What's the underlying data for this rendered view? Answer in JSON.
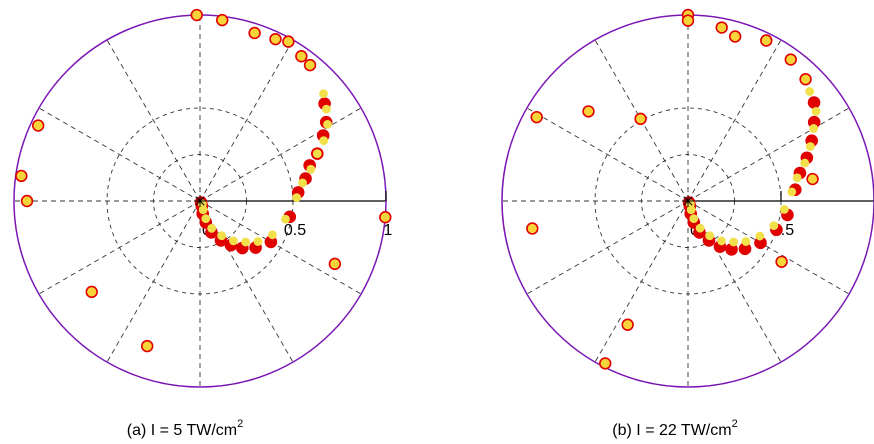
{
  "chart_data": [
    {
      "type": "scatter",
      "projection": "polar",
      "caption": {
        "prefix": "(a) I = 5 TW/cm",
        "sup": "2"
      },
      "radial_ticks": [
        "0",
        "0.5",
        "1"
      ],
      "rlim": [
        0,
        1
      ],
      "grid": true,
      "series": [
        {
          "marker": "filled-red-circle",
          "color": "#e00000",
          "points": [
            [
              0.01,
              -55
            ],
            [
              0.03,
              -70
            ],
            [
              0.07,
              -78
            ],
            [
              0.12,
              -75
            ],
            [
              0.18,
              -70
            ],
            [
              0.24,
              -62
            ],
            [
              0.29,
              -55
            ],
            [
              0.34,
              -48
            ],
            [
              0.39,
              -40
            ],
            [
              0.44,
              -30
            ],
            [
              0.49,
              -10
            ],
            [
              0.53,
              5
            ],
            [
              0.58,
              12
            ],
            [
              0.62,
              18
            ],
            [
              0.68,
              22
            ],
            [
              0.75,
              28
            ],
            [
              0.8,
              32
            ],
            [
              0.85,
              38
            ]
          ]
        },
        {
          "marker": "filled-yellow-circle",
          "color": "#f2e04a",
          "points": [
            [
              0.02,
              -50
            ],
            [
              0.05,
              -70
            ],
            [
              0.1,
              -72
            ],
            [
              0.16,
              -67
            ],
            [
              0.22,
              -58
            ],
            [
              0.28,
              -50
            ],
            [
              0.33,
              -42
            ],
            [
              0.38,
              -35
            ],
            [
              0.43,
              -25
            ],
            [
              0.47,
              -12
            ],
            [
              0.52,
              2
            ],
            [
              0.56,
              10
            ],
            [
              0.62,
              16
            ],
            [
              0.68,
              22
            ],
            [
              0.74,
              26
            ],
            [
              0.8,
              31
            ],
            [
              0.84,
              36
            ],
            [
              0.88,
              41
            ]
          ]
        },
        {
          "marker": "yellow-circle-red-edge",
          "color": "#f7d43a",
          "edge": "#e00000",
          "points": [
            [
              1.0,
              91
            ],
            [
              0.98,
              83
            ],
            [
              0.95,
              72
            ],
            [
              0.96,
              65
            ],
            [
              0.98,
              61
            ],
            [
              0.95,
              55
            ],
            [
              0.94,
              51
            ],
            [
              0.96,
              155
            ],
            [
              0.97,
              172
            ],
            [
              0.93,
              180
            ],
            [
              1.0,
              -5
            ],
            [
              0.8,
              -25
            ],
            [
              0.76,
              -140
            ],
            [
              0.83,
              -110
            ]
          ]
        }
      ]
    },
    {
      "type": "scatter",
      "projection": "polar",
      "caption": {
        "prefix": "(b) I = 22 TW/cm",
        "sup": "2"
      },
      "radial_ticks": [
        "0",
        "0.5"
      ],
      "rlim": [
        0,
        1
      ],
      "grid": true,
      "series": [
        {
          "marker": "filled-red-circle",
          "color": "#e00000",
          "points": [
            [
              0.01,
              -55
            ],
            [
              0.03,
              -70
            ],
            [
              0.07,
              -78
            ],
            [
              0.12,
              -75
            ],
            [
              0.18,
              -70
            ],
            [
              0.24,
              -62
            ],
            [
              0.3,
              -55
            ],
            [
              0.35,
              -48
            ],
            [
              0.4,
              -40
            ],
            [
              0.45,
              -30
            ],
            [
              0.5,
              -18
            ],
            [
              0.54,
              -8
            ],
            [
              0.58,
              6
            ],
            [
              0.62,
              14
            ],
            [
              0.68,
              20
            ],
            [
              0.74,
              26
            ],
            [
              0.8,
              32
            ],
            [
              0.86,
              38
            ]
          ]
        },
        {
          "marker": "filled-yellow-circle",
          "color": "#f2e04a",
          "points": [
            [
              0.02,
              -50
            ],
            [
              0.05,
              -70
            ],
            [
              0.1,
              -72
            ],
            [
              0.16,
              -66
            ],
            [
              0.22,
              -58
            ],
            [
              0.28,
              -50
            ],
            [
              0.33,
              -42
            ],
            [
              0.38,
              -35
            ],
            [
              0.43,
              -26
            ],
            [
              0.48,
              -16
            ],
            [
              0.52,
              -5
            ],
            [
              0.56,
              5
            ],
            [
              0.6,
              12
            ],
            [
              0.66,
              18
            ],
            [
              0.72,
              24
            ],
            [
              0.78,
              30
            ],
            [
              0.84,
              35
            ],
            [
              0.88,
              42
            ]
          ]
        },
        {
          "marker": "yellow-circle-red-edge",
          "color": "#f7d43a",
          "edge": "#e00000",
          "points": [
            [
              1.0,
              90
            ],
            [
              0.97,
              90
            ],
            [
              0.95,
              79
            ],
            [
              0.92,
              74
            ],
            [
              0.96,
              64
            ],
            [
              0.94,
              54
            ],
            [
              0.91,
              46
            ],
            [
              0.72,
              138
            ],
            [
              0.93,
              151
            ],
            [
              0.85,
              190
            ],
            [
              0.68,
              10
            ],
            [
              0.6,
              -33
            ],
            [
              0.74,
              -116
            ],
            [
              0.98,
              -117
            ],
            [
              0.51,
              120
            ]
          ]
        }
      ]
    }
  ]
}
